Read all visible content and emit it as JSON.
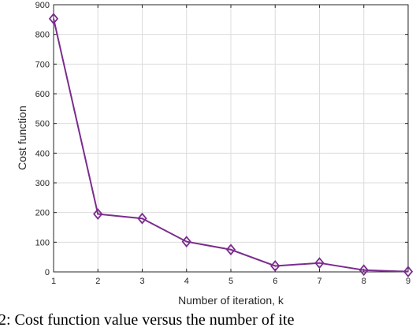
{
  "chart_data": {
    "type": "line",
    "x": [
      1,
      2,
      3,
      4,
      5,
      6,
      7,
      8,
      9
    ],
    "series": [
      {
        "values": [
          853,
          195,
          180,
          102,
          75,
          20,
          30,
          6,
          1
        ],
        "color": "#7b2c8e",
        "marker": "diamond"
      }
    ],
    "xlabel": "Number of iteration, k",
    "ylabel": "Cost function",
    "xlim": [
      1,
      9
    ],
    "ylim": [
      0,
      900
    ],
    "xticks": [
      "1",
      "2",
      "3",
      "4",
      "5",
      "6",
      "7",
      "8",
      "9"
    ],
    "yticks": [
      "0",
      "100",
      "200",
      "300",
      "400",
      "500",
      "600",
      "700",
      "800",
      "900"
    ],
    "grid": true
  },
  "caption": "2: Cost function value versus the number of ite"
}
